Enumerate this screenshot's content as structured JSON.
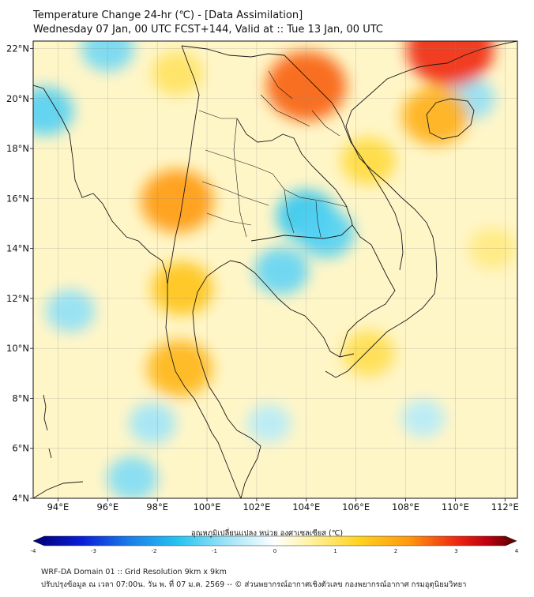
{
  "header": {
    "title": "Temperature Change 24-hr (℃) - [Data Assimilation]",
    "subtitle": "Wednesday 07 Jan, 00 UTC FCST+144, Valid at :: Tue 13 Jan, 00 UTC"
  },
  "map": {
    "lon_range": [
      93,
      112.5
    ],
    "lat_range": [
      4,
      22.3
    ],
    "lon_ticks": [
      {
        "v": 94,
        "label": "94°E"
      },
      {
        "v": 96,
        "label": "96°E"
      },
      {
        "v": 98,
        "label": "98°E"
      },
      {
        "v": 100,
        "label": "100°E"
      },
      {
        "v": 102,
        "label": "102°E"
      },
      {
        "v": 104,
        "label": "104°E"
      },
      {
        "v": 106,
        "label": "106°E"
      },
      {
        "v": 108,
        "label": "108°E"
      },
      {
        "v": 110,
        "label": "110°E"
      },
      {
        "v": 112,
        "label": "112°E"
      }
    ],
    "lat_ticks": [
      {
        "v": 4,
        "label": "4°N"
      },
      {
        "v": 6,
        "label": "6°N"
      },
      {
        "v": 8,
        "label": "8°N"
      },
      {
        "v": 10,
        "label": "10°N"
      },
      {
        "v": 12,
        "label": "12°N"
      },
      {
        "v": 14,
        "label": "14°N"
      },
      {
        "v": 16,
        "label": "16°N"
      },
      {
        "v": 18,
        "label": "18°N"
      },
      {
        "v": 20,
        "label": "20°N"
      },
      {
        "v": 22,
        "label": "22°N"
      }
    ],
    "background_color": "#fff6c8",
    "anomalies": [
      {
        "name": "cold-anomaly-northeast-thailand",
        "lon": 104.0,
        "lat": 15.3,
        "value": -1.5
      },
      {
        "name": "cold-anomaly-central-cambodia",
        "lon": 104.8,
        "lat": 14.6,
        "value": -1.3
      },
      {
        "name": "cold-anomaly-tonle-sap",
        "lon": 103.0,
        "lat": 13.1,
        "value": -1.2
      },
      {
        "name": "cold-anomaly-myanmar-coast",
        "lon": 93.5,
        "lat": 19.5,
        "value": -1.3
      },
      {
        "name": "cold-anomaly-north-myanmar",
        "lon": 96.0,
        "lat": 22.0,
        "value": -1.1
      },
      {
        "name": "cold-anomaly-andaman-sea",
        "lon": 94.5,
        "lat": 11.5,
        "value": -0.9
      },
      {
        "name": "cold-anomaly-south-andaman",
        "lon": 97.0,
        "lat": 4.8,
        "value": -1.0
      },
      {
        "name": "cold-anomaly-malay-west",
        "lon": 97.8,
        "lat": 7.0,
        "value": -0.8
      },
      {
        "name": "cold-anomaly-south-china-sea",
        "lon": 108.7,
        "lat": 7.2,
        "value": -0.6
      },
      {
        "name": "cold-anomaly-hainan-east",
        "lon": 110.6,
        "lat": 20.0,
        "value": -0.9
      },
      {
        "name": "cold-anomaly-gulf-of-thailand",
        "lon": 102.5,
        "lat": 7.0,
        "value": -0.6
      },
      {
        "name": "warm-anomaly-laos-north",
        "lon": 104.0,
        "lat": 20.5,
        "value": 2.6
      },
      {
        "name": "warm-anomaly-guangxi",
        "lon": 109.8,
        "lat": 22.0,
        "value": 3.0
      },
      {
        "name": "warm-anomaly-hainan",
        "lon": 109.2,
        "lat": 19.3,
        "value": 1.9
      },
      {
        "name": "warm-anomaly-thailand-west",
        "lon": 98.8,
        "lat": 15.9,
        "value": 2.2
      },
      {
        "name": "warm-anomaly-tenasserim",
        "lon": 99.0,
        "lat": 12.4,
        "value": 1.6
      },
      {
        "name": "warm-anomaly-malay-north",
        "lon": 98.9,
        "lat": 9.2,
        "value": 1.8
      },
      {
        "name": "warm-anomaly-vietnam-central",
        "lon": 106.5,
        "lat": 17.5,
        "value": 1.2
      },
      {
        "name": "warm-anomaly-mekong-delta",
        "lon": 106.5,
        "lat": 9.8,
        "value": 1.1
      },
      {
        "name": "warm-anomaly-shan",
        "lon": 98.8,
        "lat": 21.0,
        "value": 1.0
      },
      {
        "name": "warm-anomaly-east-sea",
        "lon": 111.5,
        "lat": 14.0,
        "value": 0.8
      }
    ]
  },
  "colorbar": {
    "label": "อุณหภูมิเปลี่ยนแปลง หน่วย องศาเซลเซียส (℃)",
    "min": -4,
    "max": 4,
    "ticks": [
      {
        "v": -4,
        "label": "-4"
      },
      {
        "v": -3,
        "label": "-3"
      },
      {
        "v": -2,
        "label": "-2"
      },
      {
        "v": -1,
        "label": "-1"
      },
      {
        "v": 0,
        "label": "0"
      },
      {
        "v": 1,
        "label": "1"
      },
      {
        "v": 2,
        "label": "2"
      },
      {
        "v": 3,
        "label": "3"
      },
      {
        "v": 4,
        "label": "4"
      }
    ],
    "colors": [
      {
        "v": -4,
        "c": "#000070"
      },
      {
        "v": -3.2,
        "c": "#0a1cd8"
      },
      {
        "v": -2.4,
        "c": "#1a7ee8"
      },
      {
        "v": -1.6,
        "c": "#26c4f0"
      },
      {
        "v": -0.8,
        "c": "#9ee4f8"
      },
      {
        "v": 0,
        "c": "#ffffff"
      },
      {
        "v": 0.6,
        "c": "#fff2a0"
      },
      {
        "v": 1.4,
        "c": "#ffd21e"
      },
      {
        "v": 2.2,
        "c": "#ff9a10"
      },
      {
        "v": 3.0,
        "c": "#f02810"
      },
      {
        "v": 3.5,
        "c": "#c00010"
      },
      {
        "v": 4,
        "c": "#500000"
      }
    ]
  },
  "footer": {
    "line1": "WRF-DA Domain 01 :: Grid Resolution 9km x 9km",
    "line2": "ปรับปรุงข้อมูล ณ เวลา 07:00น. วัน พ. ที่ 07 ม.ค. 2569 -- © ส่วนพยากรณ์อากาศเชิงตัวเลข กองพยากรณ์อากาศ กรมอุตุนิยมวิทยา"
  }
}
